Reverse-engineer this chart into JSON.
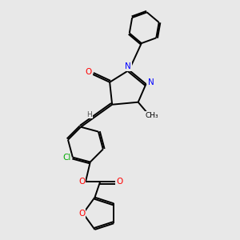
{
  "background_color": "#e8e8e8",
  "atom_colors": {
    "O": "#ff0000",
    "N": "#0000ff",
    "Cl": "#00aa00",
    "C": "#000000",
    "H": "#555555"
  },
  "bond_color": "#000000",
  "bond_width": 1.4,
  "font_size_atoms": 7.5,
  "font_size_small": 6.5
}
